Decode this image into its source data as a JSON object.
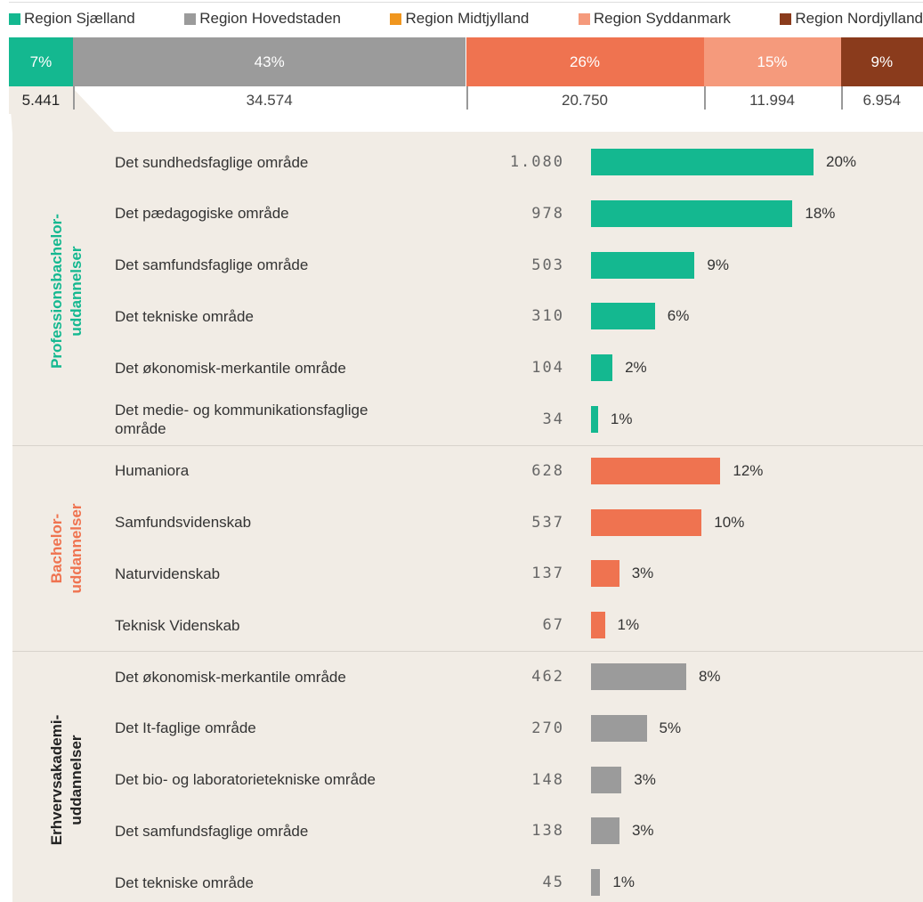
{
  "chart_data": [
    {
      "type": "stacked_bar",
      "series": [
        {
          "name": "Region Sjælland",
          "color": "#14b890",
          "bar_color": "#14b890",
          "values": [
            7
          ],
          "value_labels": [
            "7%"
          ],
          "counts": [
            5441
          ],
          "count_labels": [
            "5.441"
          ]
        },
        {
          "name": "Region Hovedstaden",
          "color": "#9b9b9b",
          "bar_color": "#9b9b9b",
          "values": [
            43
          ],
          "value_labels": [
            "43%"
          ],
          "counts": [
            34574
          ],
          "count_labels": [
            "34.574"
          ]
        },
        {
          "name": "Region Midtjylland",
          "color": "#f0961e",
          "bar_color": "#ef7350",
          "values": [
            26
          ],
          "value_labels": [
            "26%"
          ],
          "counts": [
            20750
          ],
          "count_labels": [
            "20.750"
          ]
        },
        {
          "name": "Region Syddanmark",
          "color": "#f59a7c",
          "bar_color": "#f59a7c",
          "values": [
            15
          ],
          "value_labels": [
            "15%"
          ],
          "counts": [
            11994
          ],
          "count_labels": [
            "11.994"
          ]
        },
        {
          "name": "Region Nordjylland",
          "color": "#8a3b1c",
          "bar_color": "#8a3b1c",
          "values": [
            9
          ],
          "value_labels": [
            "9%"
          ],
          "counts": [
            6954
          ],
          "count_labels": [
            "6.954"
          ]
        }
      ]
    },
    {
      "type": "grouped_hbar",
      "groups": [
        {
          "name": "Professionsbachelor-\nuddannelser",
          "color": "#14b890",
          "label_color": "#14b890",
          "categories": [
            "Det sundhedsfaglige område",
            "Det pædagogiske område",
            "Det samfundsfaglige område",
            "Det tekniske område",
            "Det økonomisk-merkantile område",
            "Det medie- og kommunikationsfaglige område"
          ],
          "counts": [
            1080,
            978,
            503,
            310,
            104,
            34
          ],
          "count_labels": [
            "1.080",
            "978",
            "503",
            "310",
            "104",
            "34"
          ],
          "values": [
            20,
            18,
            9,
            6,
            2,
            1
          ],
          "value_labels": [
            "20%",
            "18%",
            "9%",
            "6%",
            "2%",
            "1%"
          ]
        },
        {
          "name": "Bachelor-\nuddannelser",
          "color": "#ef7350",
          "label_color": "#ef7350",
          "categories": [
            "Humaniora",
            "Samfundsvidenskab",
            "Naturvidenskab",
            "Teknisk Videnskab"
          ],
          "counts": [
            628,
            537,
            137,
            67
          ],
          "count_labels": [
            "628",
            "537",
            "137",
            "67"
          ],
          "values": [
            12,
            10,
            3,
            1
          ],
          "value_labels": [
            "12%",
            "10%",
            "3%",
            "1%"
          ]
        },
        {
          "name": "Erhvervsakademi-\nuddannelser",
          "color": "#9b9b9b",
          "label_color": "#222222",
          "categories": [
            "Det økonomisk-merkantile område",
            "Det It-faglige område",
            "Det bio- og laboratorietekniske område",
            "Det samfundsfaglige område",
            "Det tekniske område"
          ],
          "counts": [
            462,
            270,
            148,
            138,
            45
          ],
          "count_labels": [
            "462",
            "270",
            "148",
            "138",
            "45"
          ],
          "values": [
            8,
            5,
            3,
            3,
            1
          ],
          "value_labels": [
            "8%",
            "5%",
            "3%",
            "3%",
            "1%"
          ]
        }
      ]
    }
  ]
}
